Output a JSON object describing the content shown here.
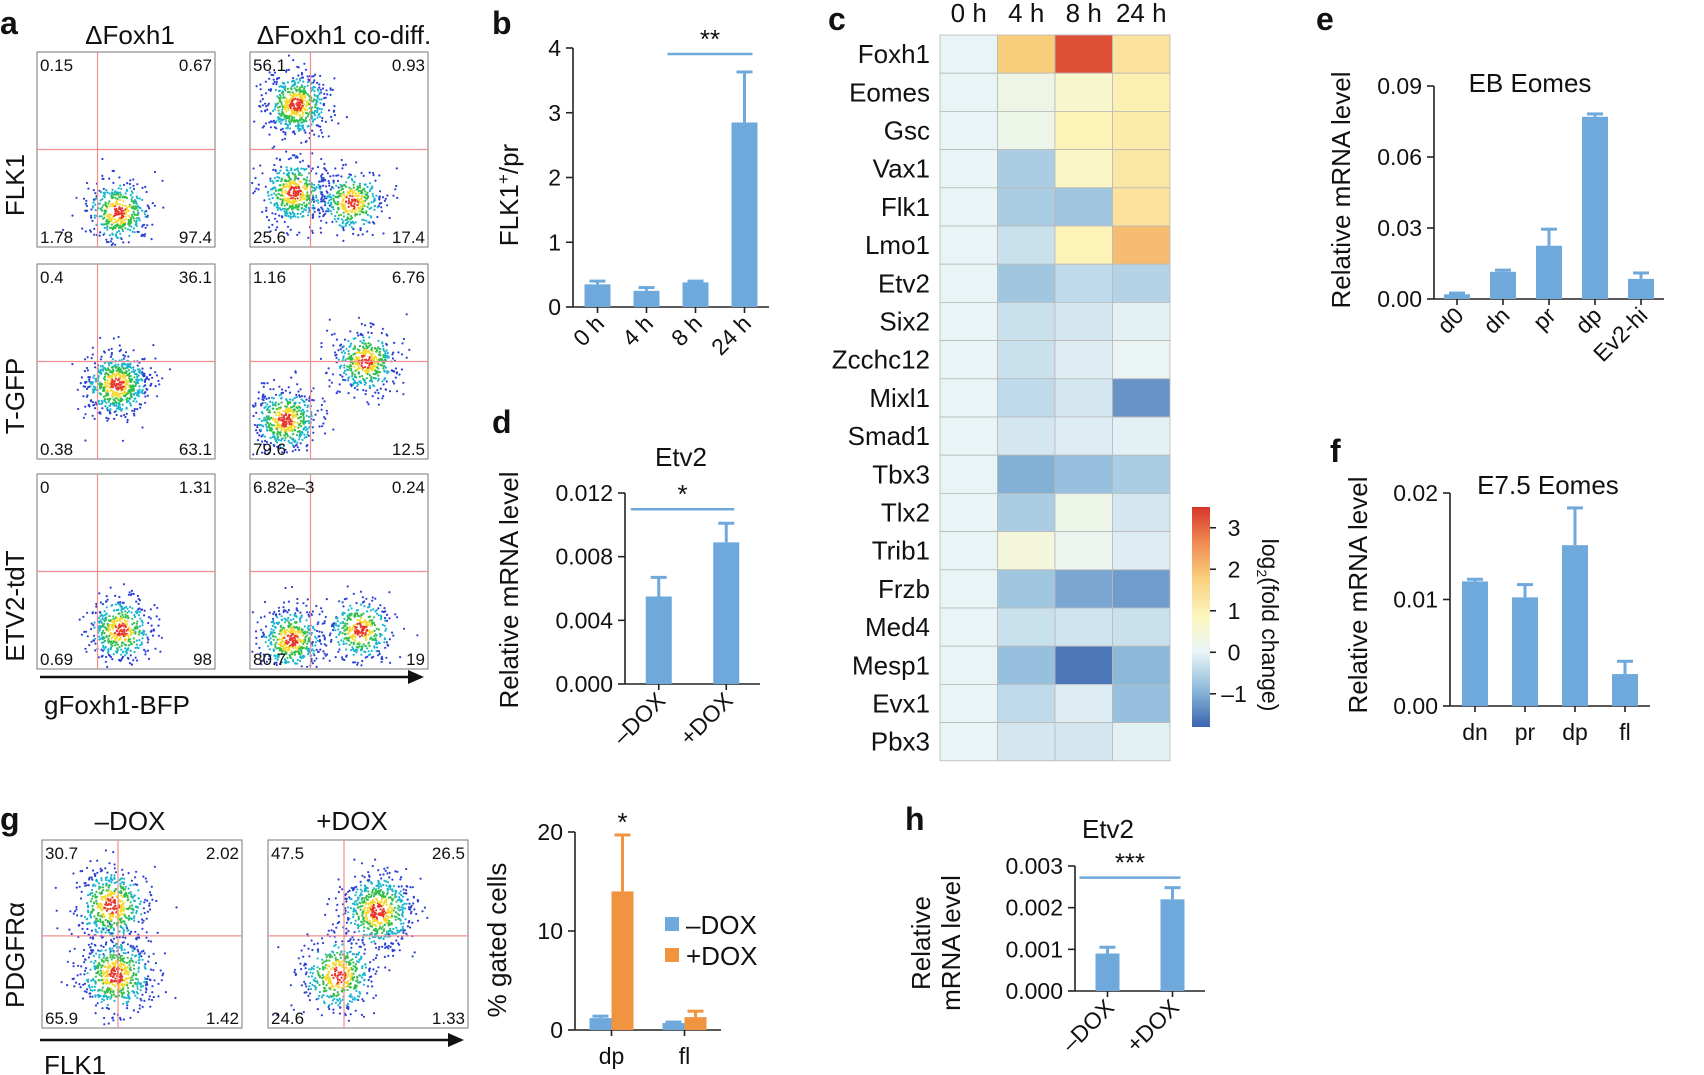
{
  "chart_data": [
    {
      "id": "a",
      "type": "scatter",
      "label": "a",
      "col_titles": [
        "ΔFoxh1",
        "ΔFoxh1 co-diff."
      ],
      "row_labels": [
        "FLK1",
        "T-GFP",
        "ETV2-tdT"
      ],
      "xlabel": "gFoxh1-BFP",
      "panels": [
        {
          "quads": [
            "0.15",
            "0.67",
            "1.78",
            "97.4"
          ],
          "clusters": [
            [
              0.46,
              0.82,
              0.65
            ]
          ]
        },
        {
          "quads": [
            "56.1",
            "0.93",
            "25.6",
            "17.4"
          ],
          "clusters": [
            [
              0.26,
              0.27,
              0.9
            ],
            [
              0.25,
              0.72,
              0.75
            ],
            [
              0.57,
              0.77,
              0.6
            ]
          ]
        },
        {
          "quads": [
            "0.4",
            "36.1",
            "0.38",
            "63.1"
          ],
          "clusters": [
            [
              0.45,
              0.62,
              1.0
            ]
          ]
        },
        {
          "quads": [
            "1.16",
            "6.76",
            "79.6",
            "12.5"
          ],
          "clusters": [
            [
              0.2,
              0.8,
              0.8
            ],
            [
              0.65,
              0.5,
              0.7
            ]
          ]
        },
        {
          "quads": [
            "0",
            "1.31",
            "0.69",
            "98"
          ],
          "clusters": [
            [
              0.47,
              0.8,
              0.7
            ]
          ]
        },
        {
          "quads": [
            "6.82e–3",
            "0.24",
            "80.7",
            "19"
          ],
          "clusters": [
            [
              0.23,
              0.85,
              0.75
            ],
            [
              0.62,
              0.8,
              0.6
            ]
          ]
        }
      ]
    },
    {
      "id": "b",
      "type": "bar",
      "label": "b",
      "categories": [
        "0 h",
        "4 h",
        "8 h",
        "24 h"
      ],
      "values": [
        0.35,
        0.25,
        0.38,
        2.85
      ],
      "errors": [
        0.05,
        0.05,
        0.02,
        0.78
      ],
      "ylabel": "FLK1+/pr",
      "yticks": [
        "0",
        "1",
        "2",
        "3",
        "4"
      ],
      "ylim": [
        0,
        4
      ],
      "significance": [
        {
          "pair": [
            2,
            3
          ],
          "label": "**"
        }
      ]
    },
    {
      "id": "c",
      "type": "heatmap",
      "label": "c",
      "columns": [
        "0 h",
        "4 h",
        "8 h",
        "24 h"
      ],
      "rows": [
        "Foxh1",
        "Eomes",
        "Gsc",
        "Vax1",
        "Flk1",
        "Lmo1",
        "Etv2",
        "Six2",
        "Zcchc12",
        "Mixl1",
        "Smad1",
        "Tbx3",
        "Tlx2",
        "Trib1",
        "Frzb",
        "Med4",
        "Mesp1",
        "Evx1",
        "Pbx3"
      ],
      "values": [
        [
          0,
          1.8,
          3.2,
          1.3
        ],
        [
          0,
          0.25,
          0.6,
          1.0
        ],
        [
          0,
          0.2,
          0.9,
          1.1
        ],
        [
          0,
          -0.6,
          0.7,
          1.2
        ],
        [
          0,
          -0.6,
          -0.7,
          1.3
        ],
        [
          0,
          -0.3,
          0.9,
          2.0
        ],
        [
          0,
          -0.7,
          -0.4,
          -0.5
        ],
        [
          0,
          -0.3,
          -0.2,
          -0.05
        ],
        [
          0,
          -0.3,
          -0.1,
          0.05
        ],
        [
          0,
          -0.4,
          -0.2,
          -1.3
        ],
        [
          0,
          -0.2,
          -0.1,
          -0.05
        ],
        [
          0,
          -1.0,
          -0.8,
          -0.6
        ],
        [
          0,
          -0.6,
          0.2,
          -0.2
        ],
        [
          0,
          0.4,
          0.1,
          -0.1
        ],
        [
          0,
          -0.7,
          -1.1,
          -1.2
        ],
        [
          0,
          -0.3,
          -0.25,
          -0.3
        ],
        [
          0,
          -0.8,
          -1.6,
          -0.9
        ],
        [
          0,
          -0.4,
          -0.1,
          -0.8
        ],
        [
          0,
          -0.2,
          -0.2,
          -0.05
        ]
      ],
      "colorbar": {
        "ticks": [
          "3",
          "2",
          "1",
          "0",
          "–1"
        ],
        "range": [
          -1.8,
          3.5
        ],
        "label": "log2(fold change)"
      }
    },
    {
      "id": "d",
      "type": "bar",
      "label": "d",
      "title": "Etv2",
      "categories": [
        "–DOX",
        "+DOX"
      ],
      "values": [
        0.0055,
        0.0089
      ],
      "errors": [
        0.0012,
        0.0012
      ],
      "ylabel": "Relative mRNA level",
      "yticks": [
        "0.000",
        "0.004",
        "0.008",
        "0.012"
      ],
      "ylim": [
        0,
        0.012
      ],
      "significance": [
        {
          "pair": [
            0,
            1
          ],
          "label": "*"
        }
      ]
    },
    {
      "id": "e",
      "type": "bar",
      "label": "e",
      "title": "EB Eomes",
      "categories": [
        "d0",
        "dn",
        "pr",
        "dp",
        "Ev2-hi"
      ],
      "values": [
        0.002,
        0.0115,
        0.0225,
        0.077,
        0.0085
      ],
      "errors": [
        0.0005,
        0.0007,
        0.007,
        0.0012,
        0.0025
      ],
      "ylabel": "Relative mRNA level",
      "yticks": [
        "0.00",
        "0.03",
        "0.06",
        "0.09"
      ],
      "ylim": [
        0,
        0.09
      ]
    },
    {
      "id": "f",
      "type": "bar",
      "label": "f",
      "title": "E7.5 Eomes",
      "categories": [
        "dn",
        "pr",
        "dp",
        "fl"
      ],
      "values": [
        0.0117,
        0.0102,
        0.0151,
        0.003
      ],
      "errors": [
        0.0002,
        0.0012,
        0.0035,
        0.0012
      ],
      "ylabel": "Relative mRNA level",
      "yticks": [
        "0.00",
        "0.01",
        "0.02"
      ],
      "ylim": [
        0,
        0.02
      ]
    },
    {
      "id": "g",
      "type": "scatter",
      "label": "g",
      "col_titles": [
        "–DOX",
        "+DOX"
      ],
      "ylabel": "PDGFRα",
      "xlabel": "FLK1",
      "panels": [
        {
          "quads": [
            "30.7",
            "2.02",
            "65.9",
            "1.42"
          ],
          "clusters": [
            [
              0.35,
              0.35,
              0.8
            ],
            [
              0.37,
              0.72,
              0.9
            ]
          ]
        },
        {
          "quads": [
            "47.5",
            "26.5",
            "24.6",
            "1.33"
          ],
          "clusters": [
            [
              0.55,
              0.38,
              1.0
            ],
            [
              0.35,
              0.72,
              0.7
            ]
          ]
        }
      ]
    },
    {
      "id": "g-bar",
      "type": "bar",
      "categories": [
        "dp",
        "fl"
      ],
      "series": [
        {
          "name": "–DOX",
          "color": "#6fa9dc",
          "values": [
            1.2,
            0.7
          ],
          "errors": [
            0.2,
            0.1
          ]
        },
        {
          "name": "+DOX",
          "color": "#f0943f",
          "values": [
            14,
            1.3
          ],
          "errors": [
            5.7,
            0.6
          ]
        }
      ],
      "ylabel": "% gated cells",
      "yticks": [
        "0",
        "10",
        "20"
      ],
      "ylim": [
        0,
        20
      ],
      "significance": [
        {
          "label": "*",
          "category": 0,
          "series": 1
        }
      ]
    },
    {
      "id": "h",
      "type": "bar",
      "label": "h",
      "title": "Etv2",
      "categories": [
        "–DOX",
        "+DOX"
      ],
      "values": [
        0.0009,
        0.0022
      ],
      "errors": [
        0.00015,
        0.00028
      ],
      "ylabel_lines": [
        "Relative",
        "mRNA level"
      ],
      "yticks": [
        "0.000",
        "0.001",
        "0.002",
        "0.003"
      ],
      "ylim": [
        0,
        0.003
      ],
      "significance": [
        {
          "pair": [
            0,
            1
          ],
          "label": "***"
        }
      ]
    }
  ]
}
